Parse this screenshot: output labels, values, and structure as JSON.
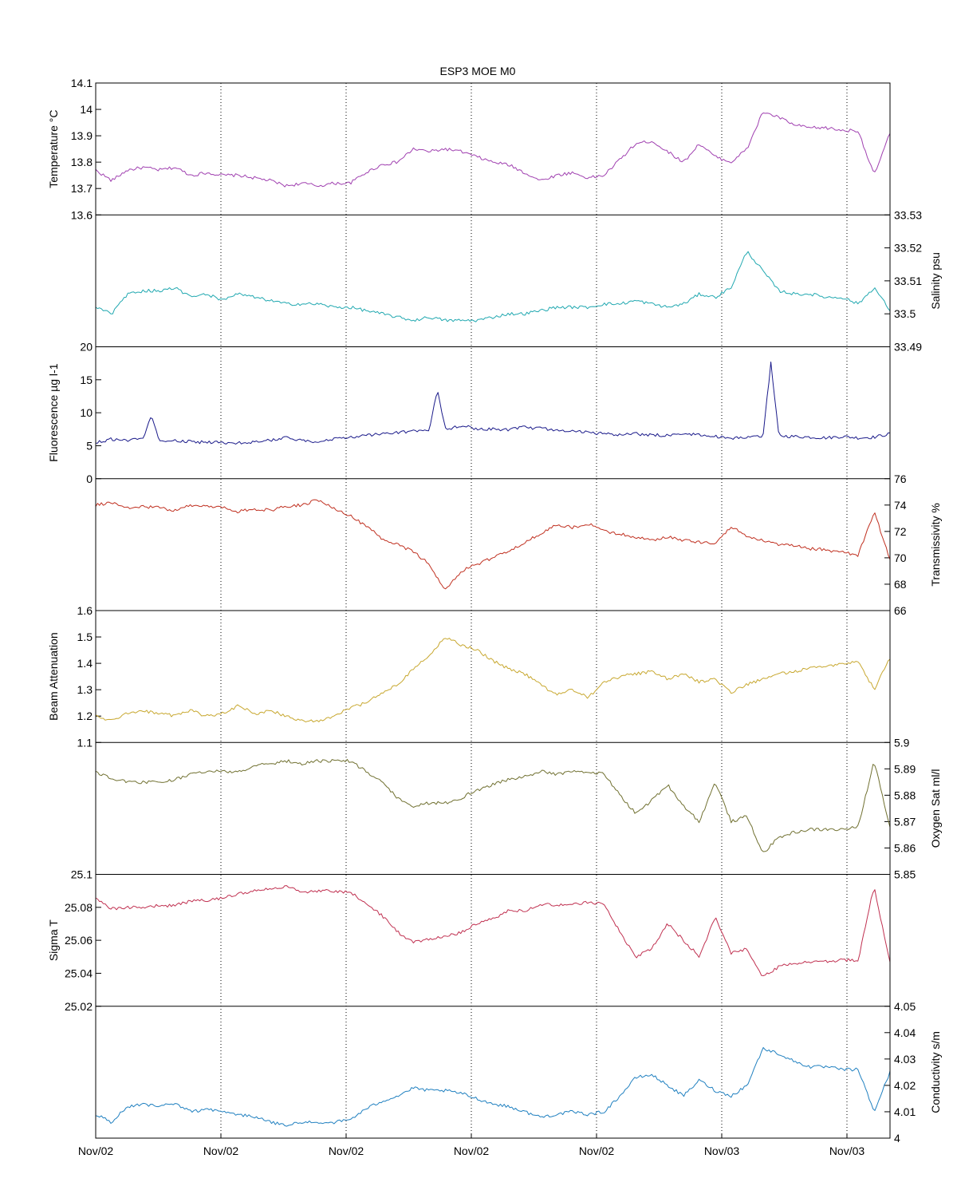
{
  "chart_data": {
    "type": "line",
    "title": "ESP3 MOE   M0",
    "x_tick_labels": [
      "Nov/02",
      "Nov/02",
      "Nov/02",
      "Nov/02",
      "Nov/02",
      "Nov/03",
      "Nov/03"
    ],
    "grid": "vertical dotted lines at x ticks",
    "panels": [
      {
        "key": "temperature",
        "ylabel": "Temperature °C",
        "axis_side": "left",
        "ylim": [
          13.6,
          14.1
        ],
        "yticks": [
          "13.6",
          "13.7",
          "13.8",
          "13.9",
          "14",
          "14.1"
        ],
        "color": "#a040b0",
        "t": [
          0,
          2,
          4,
          6,
          8,
          10,
          12,
          14,
          16,
          18,
          20,
          22,
          24,
          26,
          28,
          30,
          32,
          34,
          36,
          38,
          40,
          42,
          44,
          46,
          48,
          50,
          52,
          54,
          56,
          58,
          60,
          62,
          64,
          66,
          68,
          70,
          72,
          74,
          76,
          78,
          80,
          82,
          84,
          86,
          88,
          90,
          92,
          94,
          96,
          98,
          100
        ],
        "values": [
          13.77,
          13.73,
          13.77,
          13.78,
          13.77,
          13.78,
          13.75,
          13.76,
          13.75,
          13.75,
          13.74,
          13.73,
          13.71,
          13.72,
          13.71,
          13.72,
          13.72,
          13.76,
          13.79,
          13.8,
          13.85,
          13.84,
          13.85,
          13.84,
          13.82,
          13.8,
          13.79,
          13.76,
          13.73,
          13.75,
          13.76,
          13.74,
          13.75,
          13.81,
          13.87,
          13.88,
          13.84,
          13.8,
          13.87,
          13.82,
          13.8,
          13.85,
          13.99,
          13.97,
          13.94,
          13.93,
          13.93,
          13.92,
          13.92,
          13.75,
          13.91
        ]
      },
      {
        "key": "salinity",
        "ylabel": "Salinity psu",
        "axis_side": "right",
        "ylim": [
          33.49,
          33.53
        ],
        "yticks": [
          "33.49",
          "33.5",
          "33.51",
          "33.52",
          "33.53"
        ],
        "color": "#20a8b0",
        "t": [
          0,
          2,
          4,
          6,
          8,
          10,
          12,
          14,
          16,
          18,
          20,
          22,
          24,
          26,
          28,
          30,
          32,
          34,
          36,
          38,
          40,
          42,
          44,
          46,
          48,
          50,
          52,
          54,
          56,
          58,
          60,
          62,
          64,
          66,
          68,
          70,
          72,
          74,
          76,
          78,
          80,
          82,
          84,
          86,
          88,
          90,
          92,
          94,
          96,
          98,
          100
        ],
        "values": [
          33.502,
          33.5,
          33.506,
          33.507,
          33.507,
          33.508,
          33.505,
          33.506,
          33.504,
          33.506,
          33.505,
          33.504,
          33.503,
          33.503,
          33.503,
          33.502,
          33.502,
          33.501,
          33.5,
          33.499,
          33.498,
          33.499,
          33.498,
          33.498,
          33.498,
          33.499,
          33.5,
          33.5,
          33.501,
          33.502,
          33.502,
          33.502,
          33.503,
          33.503,
          33.504,
          33.503,
          33.502,
          33.503,
          33.506,
          33.505,
          33.508,
          33.519,
          33.513,
          33.507,
          33.506,
          33.506,
          33.505,
          33.505,
          33.503,
          33.508,
          33.501
        ]
      },
      {
        "key": "fluorescence",
        "ylabel": "Fluorescence µg l-1",
        "axis_side": "left",
        "ylim": [
          0,
          20
        ],
        "yticks": [
          "0",
          "5",
          "10",
          "15",
          "20"
        ],
        "color": "#1a1a8a",
        "t": [
          0,
          2,
          4,
          6,
          7,
          8,
          10,
          12,
          14,
          16,
          18,
          20,
          22,
          24,
          26,
          28,
          30,
          32,
          34,
          36,
          38,
          40,
          42,
          43,
          44,
          46,
          48,
          50,
          52,
          54,
          56,
          58,
          60,
          62,
          64,
          66,
          68,
          70,
          72,
          74,
          76,
          78,
          80,
          82,
          84,
          85,
          86,
          88,
          90,
          92,
          94,
          96,
          98,
          100
        ],
        "values": [
          5.5,
          6,
          5.8,
          6,
          9.8,
          5.8,
          5.7,
          5.6,
          5.5,
          5.5,
          5.4,
          5.6,
          5.8,
          6.2,
          5.8,
          5.6,
          6,
          6.3,
          6.5,
          6.8,
          7,
          7.2,
          7.4,
          13.5,
          7.5,
          8,
          7.6,
          7.5,
          7.4,
          7.8,
          7.6,
          7.4,
          7.2,
          7,
          6.8,
          6.6,
          6.8,
          6.6,
          6.6,
          6.8,
          6.6,
          6.4,
          6.2,
          6.2,
          6.4,
          17.5,
          6.5,
          6.4,
          6.3,
          6.2,
          6.4,
          6.2,
          6.3,
          6.8
        ]
      },
      {
        "key": "transmissivity",
        "ylabel": "Transmissivity %",
        "axis_side": "right",
        "ylim": [
          66,
          76
        ],
        "yticks": [
          "66",
          "68",
          "70",
          "72",
          "74",
          "76"
        ],
        "color": "#c03020",
        "t": [
          0,
          2,
          4,
          6,
          8,
          10,
          12,
          14,
          16,
          18,
          20,
          22,
          24,
          26,
          28,
          30,
          32,
          34,
          36,
          38,
          40,
          42,
          44,
          46,
          48,
          50,
          52,
          54,
          56,
          58,
          60,
          62,
          64,
          66,
          68,
          70,
          72,
          74,
          76,
          78,
          80,
          82,
          84,
          86,
          88,
          90,
          92,
          94,
          96,
          98,
          100
        ],
        "values": [
          74,
          74.2,
          73.8,
          73.9,
          73.8,
          73.6,
          74,
          73.9,
          73.8,
          73.5,
          73.7,
          73.6,
          73.9,
          74,
          74.4,
          73.8,
          73.2,
          72.4,
          71.5,
          71,
          70.5,
          69.5,
          67.5,
          69,
          69.5,
          70,
          70.5,
          71.2,
          71.8,
          72.5,
          72.3,
          72.6,
          72,
          71.8,
          71.6,
          71.3,
          71.6,
          71.3,
          71.2,
          71.1,
          72.4,
          71.6,
          71.3,
          71,
          70.9,
          70.7,
          70.6,
          70.4,
          70.2,
          73.5,
          69.9
        ]
      },
      {
        "key": "beam_attenuation",
        "ylabel": "Beam Attenuation",
        "axis_side": "left",
        "ylim": [
          1.1,
          1.6
        ],
        "yticks": [
          "1.1",
          "1.2",
          "1.3",
          "1.4",
          "1.5",
          "1.6"
        ],
        "color": "#c8a830",
        "t": [
          0,
          2,
          4,
          6,
          8,
          10,
          12,
          14,
          16,
          18,
          20,
          22,
          24,
          26,
          28,
          30,
          32,
          34,
          36,
          38,
          40,
          42,
          44,
          46,
          48,
          50,
          52,
          54,
          56,
          58,
          60,
          62,
          64,
          66,
          68,
          70,
          72,
          74,
          76,
          78,
          80,
          82,
          84,
          86,
          88,
          90,
          92,
          94,
          96,
          98,
          100
        ],
        "values": [
          1.2,
          1.18,
          1.21,
          1.22,
          1.21,
          1.2,
          1.22,
          1.2,
          1.21,
          1.24,
          1.21,
          1.22,
          1.2,
          1.18,
          1.18,
          1.2,
          1.23,
          1.25,
          1.29,
          1.32,
          1.38,
          1.43,
          1.5,
          1.47,
          1.45,
          1.41,
          1.38,
          1.36,
          1.32,
          1.28,
          1.3,
          1.27,
          1.33,
          1.35,
          1.36,
          1.37,
          1.34,
          1.36,
          1.33,
          1.34,
          1.29,
          1.32,
          1.34,
          1.36,
          1.37,
          1.38,
          1.39,
          1.4,
          1.41,
          1.3,
          1.42
        ]
      },
      {
        "key": "oxygen_sat",
        "ylabel": "Oxygen Sat ml/l",
        "axis_side": "right",
        "ylim": [
          5.85,
          5.9
        ],
        "yticks": [
          "5.85",
          "5.86",
          "5.87",
          "5.88",
          "5.89",
          "5.9"
        ],
        "color": "#707030",
        "t": [
          0,
          2,
          4,
          6,
          8,
          10,
          12,
          14,
          16,
          18,
          20,
          22,
          24,
          26,
          28,
          30,
          32,
          34,
          36,
          38,
          40,
          42,
          44,
          46,
          48,
          50,
          52,
          54,
          56,
          58,
          60,
          62,
          64,
          66,
          68,
          70,
          72,
          74,
          76,
          78,
          80,
          82,
          84,
          86,
          88,
          90,
          92,
          94,
          96,
          98,
          100
        ],
        "values": [
          5.889,
          5.886,
          5.885,
          5.885,
          5.885,
          5.886,
          5.888,
          5.889,
          5.889,
          5.889,
          5.891,
          5.892,
          5.893,
          5.892,
          5.893,
          5.893,
          5.893,
          5.889,
          5.885,
          5.879,
          5.876,
          5.877,
          5.877,
          5.879,
          5.882,
          5.884,
          5.886,
          5.887,
          5.889,
          5.888,
          5.889,
          5.889,
          5.888,
          5.88,
          5.873,
          5.878,
          5.884,
          5.876,
          5.87,
          5.885,
          5.87,
          5.872,
          5.858,
          5.864,
          5.866,
          5.867,
          5.867,
          5.867,
          5.868,
          5.893,
          5.868
        ]
      },
      {
        "key": "sigma_t",
        "ylabel": "Sigma T",
        "axis_side": "left",
        "ylim": [
          25.02,
          25.1
        ],
        "yticks": [
          "25.02",
          "25.04",
          "25.06",
          "25.08",
          "25.1"
        ],
        "color": "#c03050",
        "t": [
          0,
          2,
          4,
          6,
          8,
          10,
          12,
          14,
          16,
          18,
          20,
          22,
          24,
          26,
          28,
          30,
          32,
          34,
          36,
          38,
          40,
          42,
          44,
          46,
          48,
          50,
          52,
          54,
          56,
          58,
          60,
          62,
          64,
          66,
          68,
          70,
          72,
          74,
          76,
          78,
          80,
          82,
          84,
          86,
          88,
          90,
          92,
          94,
          96,
          98,
          100
        ],
        "values": [
          25.086,
          25.079,
          25.08,
          25.08,
          25.081,
          25.081,
          25.084,
          25.084,
          25.086,
          25.088,
          25.09,
          25.091,
          25.093,
          25.089,
          25.09,
          25.09,
          25.089,
          25.083,
          25.075,
          25.065,
          25.059,
          25.061,
          25.062,
          25.065,
          25.07,
          25.073,
          25.078,
          25.078,
          25.082,
          25.081,
          25.082,
          25.083,
          25.082,
          25.065,
          25.05,
          25.055,
          25.07,
          25.06,
          25.05,
          25.074,
          25.052,
          25.055,
          25.038,
          25.044,
          25.046,
          25.047,
          25.047,
          25.048,
          25.048,
          25.093,
          25.046
        ]
      },
      {
        "key": "conductivity",
        "ylabel": "Conductivity s/m",
        "axis_side": "right",
        "ylim": [
          4,
          4.05
        ],
        "yticks": [
          "4",
          "4.01",
          "4.02",
          "4.03",
          "4.04",
          "4.05"
        ],
        "color": "#2080c0",
        "t": [
          0,
          2,
          4,
          6,
          8,
          10,
          12,
          14,
          16,
          18,
          20,
          22,
          24,
          26,
          28,
          30,
          32,
          34,
          36,
          38,
          40,
          42,
          44,
          46,
          48,
          50,
          52,
          54,
          56,
          58,
          60,
          62,
          64,
          66,
          68,
          70,
          72,
          74,
          76,
          78,
          80,
          82,
          84,
          86,
          88,
          90,
          92,
          94,
          96,
          98,
          100
        ],
        "values": [
          4.009,
          4.006,
          4.012,
          4.013,
          4.012,
          4.013,
          4.01,
          4.011,
          4.01,
          4.009,
          4.008,
          4.006,
          4.005,
          4.006,
          4.006,
          4.006,
          4.007,
          4.011,
          4.014,
          4.016,
          4.019,
          4.018,
          4.018,
          4.017,
          4.015,
          4.013,
          4.012,
          4.01,
          4.008,
          4.009,
          4.01,
          4.009,
          4.01,
          4.016,
          4.023,
          4.024,
          4.02,
          4.016,
          4.022,
          4.018,
          4.016,
          4.02,
          4.034,
          4.032,
          4.029,
          4.027,
          4.027,
          4.026,
          4.026,
          4.01,
          4.025
        ]
      }
    ]
  }
}
